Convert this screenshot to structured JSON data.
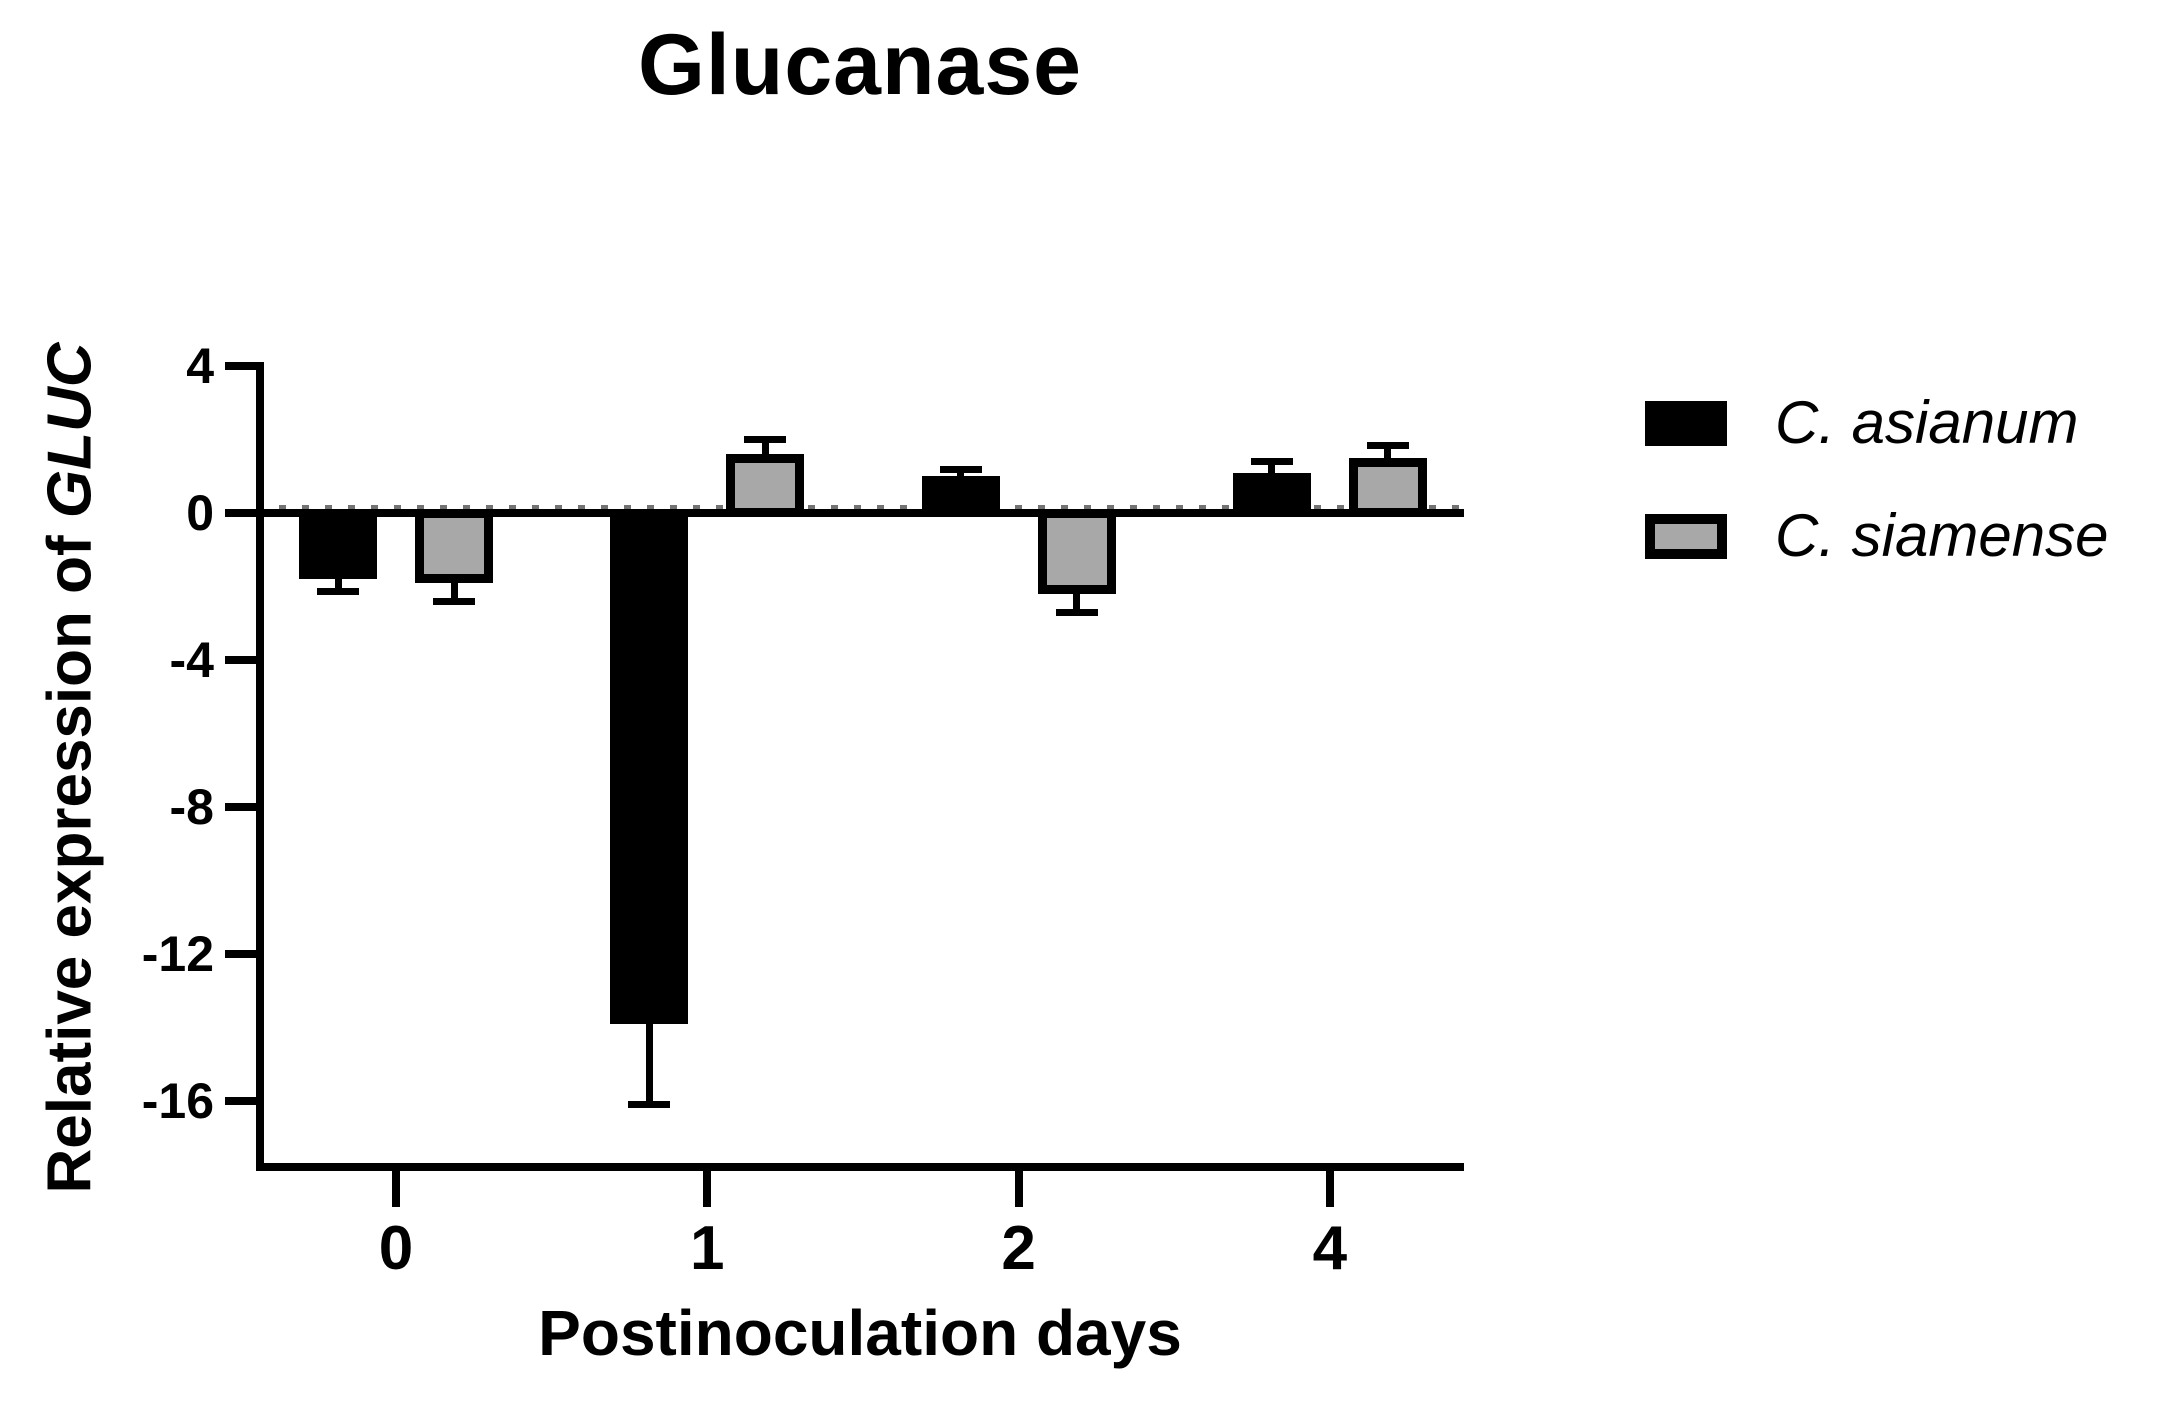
{
  "chart_data": {
    "type": "bar",
    "title": "Glucanase",
    "xlabel": "Postinoculation days",
    "ylabel": "Relative expression of GLUC",
    "ylabel_plain": "Relative expression of ",
    "ylabel_italic": "GLUC",
    "categories": [
      "0",
      "1",
      "2",
      "4"
    ],
    "yticks": [
      4,
      0,
      -4,
      -8,
      -12,
      -16
    ],
    "ylim": [
      -17.8,
      4
    ],
    "grid": false,
    "legend_position": "right-outside",
    "error_bars": "one-sided-outward",
    "series": [
      {
        "name": "C. asianum",
        "fill": "#000000",
        "border": "#000000",
        "values": [
          -1.8,
          -13.9,
          1.0,
          1.1
        ],
        "errors": [
          0.25,
          2.1,
          0.1,
          0.2
        ]
      },
      {
        "name": "C. siamense",
        "fill": "#a8a8a8",
        "border": "#000000",
        "values": [
          -1.9,
          1.6,
          -2.2,
          1.5
        ],
        "errors": [
          0.4,
          0.3,
          0.4,
          0.25
        ]
      }
    ]
  },
  "colors": {
    "background": "#ffffff",
    "axis": "#000000",
    "text": "#000000"
  }
}
